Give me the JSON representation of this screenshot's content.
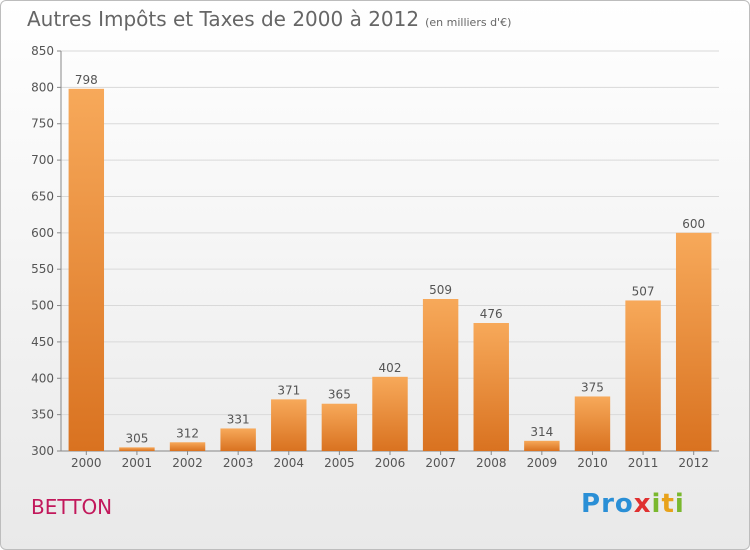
{
  "header": {
    "title": "Autres Impôts et Taxes de 2000 à 2012",
    "unit": "(en milliers d'€)"
  },
  "footer": {
    "city": "BETTON",
    "logo_text": "Proxiti"
  },
  "colors": {
    "bar_light": "#f7a95a",
    "bar_dark": "#d97220",
    "text": "#555555",
    "grid": "#d9d9d9",
    "city": "#c2185b",
    "logo_p": "#2a8fd6",
    "logo_r": "#2a8fd6",
    "logo_o": "#2a8fd6",
    "logo_x": "#e03030",
    "logo_i": "#7ab82e"
  },
  "chart_data": {
    "type": "bar",
    "categories": [
      "2000",
      "2001",
      "2002",
      "2003",
      "2004",
      "2005",
      "2006",
      "2007",
      "2008",
      "2009",
      "2010",
      "2011",
      "2012"
    ],
    "values": [
      798,
      305,
      312,
      331,
      371,
      365,
      402,
      509,
      476,
      314,
      375,
      507,
      600
    ],
    "title": "Autres Impôts et Taxes de 2000 à 2012",
    "xlabel": "",
    "ylabel": "",
    "ylim": [
      300,
      850
    ],
    "yticks": [
      300,
      350,
      400,
      450,
      500,
      550,
      600,
      650,
      700,
      750,
      800,
      850
    ],
    "grid": true,
    "data_labels": true
  }
}
